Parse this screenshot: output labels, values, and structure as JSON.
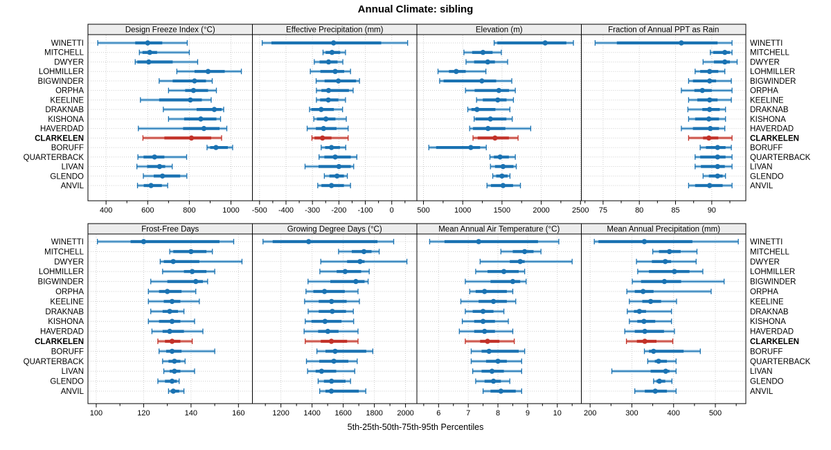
{
  "title": "Annual Climate: sibling",
  "footer_caption": "5th-25th-50th-75th-95th Percentiles",
  "highlight_station": "CLARKELEN",
  "stations": [
    "WINETTI",
    "MITCHELL",
    "DWYER",
    "LOHMILLER",
    "BIGWINDER",
    "ORPHA",
    "KEELINE",
    "DRAKNAB",
    "KISHONA",
    "HAVERDAD",
    "CLARKELEN",
    "BORUFF",
    "QUARTERBACK",
    "LIVAN",
    "GLENDO",
    "ANVIL"
  ],
  "colors": {
    "blue": "#1a72b2",
    "blue_light": "#a3cbe5",
    "red": "#c23128",
    "red_light": "#e5a29a",
    "strip_bg": "#ededed",
    "grid": "#cdcdcd",
    "border": "#000000"
  },
  "chart_data": {
    "type": "dotplot-percentiles",
    "percentiles": [
      5,
      25,
      50,
      75,
      95
    ],
    "panels": [
      {
        "title": "Design Freeze Index (°C)",
        "domain": [
          313,
          1103
        ],
        "major_ticks": [
          400,
          600,
          800,
          1000
        ],
        "minor_ticks": [
          500,
          700,
          900
        ],
        "values": [
          [
            360,
            540,
            600,
            670,
            790
          ],
          [
            560,
            575,
            610,
            645,
            800
          ],
          [
            540,
            550,
            605,
            720,
            840
          ],
          [
            740,
            825,
            890,
            970,
            1050
          ],
          [
            655,
            720,
            825,
            880,
            910
          ],
          [
            700,
            780,
            820,
            890,
            930
          ],
          [
            565,
            655,
            805,
            860,
            905
          ],
          [
            675,
            835,
            920,
            955,
            965
          ],
          [
            700,
            775,
            855,
            930,
            950
          ],
          [
            555,
            770,
            870,
            945,
            980
          ],
          [
            577,
            680,
            810,
            905,
            955
          ],
          [
            885,
            900,
            928,
            985,
            1008
          ],
          [
            553,
            580,
            633,
            680,
            787
          ],
          [
            548,
            597,
            657,
            684,
            718
          ],
          [
            579,
            629,
            671,
            756,
            788
          ],
          [
            551,
            581,
            616,
            668,
            696
          ]
        ]
      },
      {
        "title": "Effective Precipitation (mm)",
        "domain": [
          -527,
          95
        ],
        "major_ticks": [
          -500,
          -400,
          -300,
          -200,
          -100,
          0
        ],
        "minor_ticks": [
          -450,
          -350,
          -250,
          -150,
          -50,
          50
        ],
        "values": [
          [
            -490,
            -455,
            -220,
            -40,
            60
          ],
          [
            -260,
            -250,
            -226,
            -195,
            -175
          ],
          [
            -293,
            -273,
            -239,
            -205,
            -185
          ],
          [
            -308,
            -270,
            -214,
            -180,
            -156
          ],
          [
            -286,
            -254,
            -202,
            -135,
            -122
          ],
          [
            -285,
            -266,
            -239,
            -162,
            -146
          ],
          [
            -285,
            -271,
            -240,
            -202,
            -175
          ],
          [
            -311,
            -304,
            -267,
            -219,
            -186
          ],
          [
            -295,
            -283,
            -249,
            -213,
            -172
          ],
          [
            -320,
            -287,
            -258,
            -209,
            -165
          ],
          [
            -302,
            -292,
            -262,
            -228,
            -165
          ],
          [
            -267,
            -252,
            -228,
            -196,
            -174
          ],
          [
            -275,
            -255,
            -214,
            -155,
            -132
          ],
          [
            -328,
            -277,
            -200,
            -155,
            -144
          ],
          [
            -255,
            -236,
            -207,
            -181,
            -168
          ],
          [
            -280,
            -266,
            -228,
            -181,
            -156
          ]
        ]
      },
      {
        "title": "Elevation (m)",
        "domain": [
          416,
          2511
        ],
        "major_ticks": [
          500,
          1000,
          1500,
          2000,
          2500
        ],
        "minor_ticks": [
          750,
          1250,
          1750,
          2250
        ],
        "values": [
          [
            1400,
            1440,
            2050,
            2320,
            2410
          ],
          [
            1015,
            1120,
            1258,
            1380,
            1492
          ],
          [
            1042,
            1145,
            1318,
            1410,
            1572
          ],
          [
            685,
            825,
            917,
            1038,
            1295
          ],
          [
            706,
            756,
            1244,
            1426,
            1625
          ],
          [
            1035,
            1152,
            1460,
            1590,
            1670
          ],
          [
            1176,
            1256,
            1446,
            1558,
            1646
          ],
          [
            1064,
            1111,
            1182,
            1416,
            1601
          ],
          [
            1145,
            1163,
            1352,
            1556,
            1631
          ],
          [
            1088,
            1131,
            1322,
            1543,
            1866
          ],
          [
            1131,
            1191,
            1411,
            1588,
            1705
          ],
          [
            568,
            661,
            1103,
            1221,
            1300
          ],
          [
            1346,
            1397,
            1476,
            1588,
            1670
          ],
          [
            1353,
            1411,
            1514,
            1646,
            1682
          ],
          [
            1382,
            1426,
            1500,
            1572,
            1602
          ],
          [
            1309,
            1359,
            1514,
            1641,
            1735
          ]
        ]
      },
      {
        "title": "Fraction of Annual PPT as Rain",
        "domain": [
          72.0,
          94.7
        ],
        "major_ticks": [
          75,
          80,
          85,
          90
        ],
        "minor_ticks": [
          72.5,
          77.5,
          82.5,
          87.5,
          92.5
        ],
        "values": [
          [
            73.9,
            76.9,
            85.8,
            90.8,
            92.8
          ],
          [
            89.8,
            90.2,
            91.8,
            92.5,
            92.8
          ],
          [
            88.8,
            90.3,
            91.8,
            92.5,
            93.5
          ],
          [
            87.7,
            88.4,
            89.7,
            90.9,
            91.8
          ],
          [
            86.8,
            87.4,
            89.7,
            90.6,
            92.7
          ],
          [
            85.8,
            87.6,
            88.7,
            90.0,
            92.8
          ],
          [
            86.8,
            88.0,
            89.7,
            90.8,
            92.7
          ],
          [
            86.7,
            88.7,
            89.7,
            91.1,
            91.9
          ],
          [
            86.8,
            87.7,
            89.6,
            91.0,
            91.9
          ],
          [
            85.8,
            87.4,
            89.8,
            91.0,
            91.8
          ],
          [
            86.8,
            88.8,
            89.6,
            90.9,
            92.8
          ],
          [
            88.4,
            89.2,
            90.8,
            91.9,
            92.7
          ],
          [
            87.7,
            88.4,
            90.8,
            91.9,
            92.8
          ],
          [
            87.7,
            88.5,
            90.8,
            91.8,
            92.8
          ],
          [
            88.8,
            89.6,
            90.8,
            91.5,
            91.9
          ],
          [
            86.8,
            87.7,
            89.7,
            91.5,
            92.8
          ]
        ]
      },
      {
        "title": "Frost-Free Days",
        "domain": [
          96.5,
          165.9
        ],
        "major_ticks": [
          100,
          120,
          140,
          160
        ],
        "minor_ticks": [
          110,
          130,
          150
        ],
        "values": [
          [
            100.5,
            114.5,
            120,
            152,
            158
          ],
          [
            131,
            132.5,
            140,
            146.5,
            149
          ],
          [
            127,
            128.5,
            132.5,
            143.5,
            161.5
          ],
          [
            128,
            137,
            140.5,
            146.5,
            150
          ],
          [
            123,
            130,
            142,
            145,
            147
          ],
          [
            122,
            126.5,
            130,
            136,
            142
          ],
          [
            122,
            128.5,
            132,
            135.5,
            143.5
          ],
          [
            123,
            128,
            131,
            134.5,
            137
          ],
          [
            122,
            126.5,
            132,
            135.5,
            141.5
          ],
          [
            123.5,
            128,
            131,
            137,
            145
          ],
          [
            126,
            129,
            132,
            135.5,
            140.5
          ],
          [
            126.5,
            129.5,
            132,
            136,
            150
          ],
          [
            128,
            130.5,
            133,
            135.5,
            137.5
          ],
          [
            128.5,
            131,
            133,
            135.5,
            141.5
          ],
          [
            126,
            129,
            132,
            134,
            135
          ],
          [
            130.5,
            131.5,
            132.5,
            135,
            137
          ]
        ]
      },
      {
        "title": "Growing Degree Days (°C)",
        "domain": [
          1017,
          2073
        ],
        "major_ticks": [
          1200,
          1400,
          1600,
          1800,
          2000
        ],
        "minor_ticks": [
          1100,
          1300,
          1500,
          1700,
          1900
        ],
        "values": [
          [
            1085,
            1147,
            1378,
            1820,
            1924
          ],
          [
            1570,
            1655,
            1733,
            1782,
            1831
          ],
          [
            1456,
            1625,
            1708,
            1737,
            2009
          ],
          [
            1450,
            1558,
            1612,
            1715,
            1767
          ],
          [
            1374,
            1517,
            1681,
            1737,
            1760
          ],
          [
            1361,
            1408,
            1480,
            1610,
            1695
          ],
          [
            1352,
            1443,
            1525,
            1622,
            1704
          ],
          [
            1375,
            1443,
            1530,
            1618,
            1665
          ],
          [
            1356,
            1396,
            1483,
            1589,
            1667
          ],
          [
            1349,
            1439,
            1501,
            1570,
            1695
          ],
          [
            1356,
            1456,
            1524,
            1625,
            1695
          ],
          [
            1431,
            1486,
            1548,
            1748,
            1790
          ],
          [
            1364,
            1446,
            1540,
            1633,
            1690
          ],
          [
            1371,
            1423,
            1461,
            1555,
            1674
          ],
          [
            1439,
            1476,
            1525,
            1615,
            1647
          ],
          [
            1449,
            1486,
            1524,
            1700,
            1745
          ]
        ]
      },
      {
        "title": "Mean Annual Air Temperature (°C)",
        "domain": [
          5.27,
          10.81
        ],
        "major_ticks": [
          6,
          7,
          8,
          9,
          10
        ],
        "minor_ticks": [
          5.5,
          6.5,
          7.5,
          8.5,
          9.5,
          10.5
        ],
        "values": [
          [
            5.7,
            6.2,
            7.35,
            9.35,
            10.05
          ],
          [
            8.1,
            8.5,
            8.9,
            9.2,
            9.45
          ],
          [
            7.4,
            8.4,
            8.75,
            8.9,
            10.5
          ],
          [
            7.25,
            7.65,
            8.2,
            8.7,
            8.9
          ],
          [
            6.9,
            7.75,
            8.5,
            8.75,
            8.95
          ],
          [
            7.05,
            7.25,
            7.55,
            8.3,
            8.5
          ],
          [
            6.75,
            7.35,
            7.85,
            8.3,
            8.6
          ],
          [
            6.9,
            7.15,
            7.5,
            7.85,
            8.2
          ],
          [
            6.8,
            7.2,
            7.5,
            7.9,
            8.35
          ],
          [
            6.7,
            7.2,
            7.55,
            7.9,
            8.5
          ],
          [
            6.9,
            7.4,
            7.65,
            8.05,
            8.55
          ],
          [
            7.1,
            7.45,
            7.7,
            8.7,
            8.9
          ],
          [
            7.1,
            7.6,
            8.0,
            8.3,
            8.8
          ],
          [
            7.15,
            7.45,
            7.8,
            8.2,
            8.8
          ],
          [
            7.25,
            7.55,
            7.85,
            8.1,
            8.4
          ],
          [
            7.5,
            7.75,
            8.1,
            8.6,
            8.8
          ]
        ]
      },
      {
        "title": "Mean Annual Precipitation (mm)",
        "domain": [
          179,
          573
        ],
        "major_ticks": [
          200,
          300,
          400,
          500
        ],
        "minor_ticks": [
          250,
          350,
          450,
          550
        ],
        "values": [
          [
            210,
            220,
            330,
            445,
            555
          ],
          [
            350,
            365,
            390,
            417,
            456
          ],
          [
            311,
            348,
            380,
            394,
            454
          ],
          [
            314,
            341,
            402,
            438,
            470
          ],
          [
            301,
            322,
            378,
            418,
            521
          ],
          [
            288,
            307,
            327,
            352,
            490
          ],
          [
            294,
            325,
            345,
            370,
            407
          ],
          [
            289,
            305,
            318,
            334,
            395
          ],
          [
            294,
            313,
            329,
            356,
            395
          ],
          [
            283,
            307,
            331,
            377,
            402
          ],
          [
            287,
            312,
            331,
            359,
            398
          ],
          [
            330,
            341,
            352,
            424,
            464
          ],
          [
            338,
            355,
            364,
            384,
            406
          ],
          [
            252,
            345,
            381,
            390,
            406
          ],
          [
            352,
            359,
            366,
            380,
            396
          ],
          [
            307,
            331,
            356,
            384,
            406
          ]
        ]
      }
    ]
  }
}
